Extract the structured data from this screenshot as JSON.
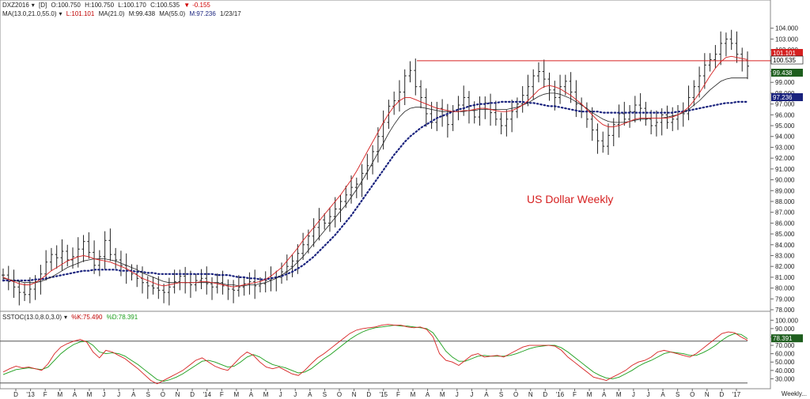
{
  "header": {
    "symbol": "DXZ2016",
    "dropdown_icon": "caret-down-icon",
    "period": "[D]",
    "open": "O:100.750",
    "high": "H:100.750",
    "low": "L:100.170",
    "close": "C:100.535",
    "change_icon": "triangle-down-icon",
    "change": "-0.155"
  },
  "ma_header": {
    "label": "MA(13.0,21.0,55.0)",
    "l": "L:101.101",
    "m1": "MA(21.0)",
    "m": "M:99.438",
    "m2": "MA(55.0)",
    "m3": "M:97.236",
    "date": "1/23/17"
  },
  "stoch_header": {
    "label": "SSTOC(13.0,8.0,3.0)",
    "k": "%K:75.490",
    "d": "%D:78.391"
  },
  "annotation": "US Dollar Weekly",
  "footer_label": "Weekly...",
  "colors": {
    "price_bar": "#222222",
    "ma13": "#d62020",
    "ma21": "#222222",
    "ma55": "#1a237e",
    "resistance": "#d62020",
    "k": "#d62020",
    "d": "#1a9e1a",
    "level": "#555555"
  },
  "chart_data": [
    {
      "type": "line",
      "title": "",
      "annotation": "US Dollar Weekly",
      "ylim": [
        78,
        105
      ],
      "y_ticks": [
        "78.000",
        "79.000",
        "80.000",
        "81.000",
        "82.000",
        "83.000",
        "84.000",
        "85.000",
        "86.000",
        "87.000",
        "88.000",
        "89.000",
        "90.000",
        "91.000",
        "92.000",
        "93.000",
        "94.000",
        "95.000",
        "96.000",
        "97.000",
        "98.000",
        "99.000",
        "100.000",
        "101.000",
        "102.000",
        "103.000",
        "104.000"
      ],
      "x_ticks": [
        "D",
        "'13",
        "F",
        "M",
        "A",
        "M",
        "J",
        "J",
        "A",
        "S",
        "O",
        "N",
        "D",
        "'14",
        "F",
        "M",
        "A",
        "M",
        "J",
        "J",
        "A",
        "S",
        "O",
        "N",
        "D",
        "'15",
        "F",
        "M",
        "A",
        "M",
        "J",
        "J",
        "A",
        "S",
        "O",
        "N",
        "D",
        "'16",
        "F",
        "M",
        "A",
        "M",
        "J",
        "J",
        "A",
        "S",
        "O",
        "N",
        "D",
        "'17"
      ],
      "last_value_labels": [
        {
          "series": "MA(13.0)",
          "value": "101.101"
        },
        {
          "series": "Close",
          "value": "100.535"
        },
        {
          "series": "MA(21.0)",
          "value": "99.438"
        },
        {
          "series": "MA(55.0)",
          "value": "97.236"
        }
      ],
      "resistance_level": 101.0,
      "weekly_close_series": [
        81.2,
        80.6,
        80.1,
        79.6,
        79.4,
        79.9,
        80.6,
        81.3,
        82.4,
        83.1,
        82.8,
        83.4,
        82.6,
        82.9,
        83.6,
        84.3,
        83.3,
        82.1,
        82.9,
        84.4,
        83.1,
        82.6,
        82.1,
        81.6,
        81.3,
        80.9,
        80.5,
        80.2,
        80.0,
        79.8,
        79.6,
        80.1,
        80.6,
        81.1,
        80.5,
        80.3,
        80.7,
        80.9,
        80.4,
        80.1,
        80.5,
        80.2,
        79.9,
        79.8,
        80.1,
        80.4,
        80.6,
        80.2,
        80.4,
        80.7,
        80.9,
        81.0,
        81.5,
        82.0,
        82.5,
        83.2,
        84.0,
        84.8,
        85.6,
        86.3,
        86.0,
        86.6,
        87.3,
        88.0,
        88.6,
        89.3,
        89.6,
        90.6,
        91.3,
        92.6,
        94.0,
        95.3,
        96.8,
        97.3,
        98.1,
        99.6,
        100.1,
        98.6,
        97.6,
        96.1,
        95.3,
        96.6,
        95.9,
        95.1,
        96.3,
        96.9,
        97.6,
        96.4,
        95.8,
        96.6,
        97.1,
        96.2,
        95.6,
        95.0,
        95.6,
        96.3,
        97.0,
        97.8,
        98.6,
        99.6,
        100.0,
        99.3,
        98.3,
        97.6,
        98.6,
        99.1,
        98.1,
        97.0,
        96.3,
        95.6,
        94.6,
        93.6,
        93.1,
        94.1,
        95.1,
        96.1,
        95.6,
        96.3,
        96.9,
        96.6,
        95.6,
        95.0,
        95.3,
        96.0,
        95.3,
        95.6,
        96.3,
        96.1,
        97.6,
        98.6,
        99.6,
        100.6,
        101.1,
        101.6,
        102.6,
        103.0,
        102.6,
        101.6,
        101.0,
        100.5
      ],
      "ma13_series": [
        81.0,
        80.8,
        80.6,
        80.4,
        80.3,
        80.3,
        80.5,
        80.8,
        81.2,
        81.6,
        81.9,
        82.2,
        82.5,
        82.7,
        82.9,
        83.0,
        82.9,
        82.7,
        82.6,
        82.5,
        82.4,
        82.2,
        82.0,
        81.8,
        81.5,
        81.2,
        80.9,
        80.7,
        80.5,
        80.3,
        80.2,
        80.3,
        80.4,
        80.5,
        80.5,
        80.5,
        80.5,
        80.6,
        80.6,
        80.5,
        80.4,
        80.3,
        80.2,
        80.1,
        80.2,
        80.3,
        80.4,
        80.5,
        80.6,
        80.8,
        81.1,
        81.5,
        81.9,
        82.5,
        83.1,
        83.7,
        84.4,
        85.0,
        85.6,
        86.2,
        86.8,
        87.4,
        88.0,
        88.6,
        89.3,
        90.0,
        90.8,
        91.7,
        92.6,
        93.5,
        94.4,
        95.3,
        96.1,
        96.8,
        97.3,
        97.6,
        97.6,
        97.4,
        97.2,
        97.0,
        96.8,
        96.6,
        96.5,
        96.4,
        96.3,
        96.3,
        96.4,
        96.4,
        96.5,
        96.6,
        96.6,
        96.5,
        96.4,
        96.3,
        96.3,
        96.4,
        96.6,
        96.9,
        97.3,
        97.8,
        98.3,
        98.6,
        98.7,
        98.6,
        98.4,
        98.1,
        97.8,
        97.4,
        97.0,
        96.5,
        96.0,
        95.5,
        95.1,
        94.9,
        94.9,
        95.0,
        95.2,
        95.4,
        95.6,
        95.7,
        95.7,
        95.7,
        95.7,
        95.7,
        95.7,
        95.8,
        96.0,
        96.3,
        96.7,
        97.3,
        98.0,
        98.8,
        99.6,
        100.3,
        100.9,
        101.3,
        101.4,
        101.3,
        101.2,
        101.1
      ],
      "ma21_series": [
        80.9,
        80.8,
        80.7,
        80.6,
        80.5,
        80.5,
        80.5,
        80.6,
        80.8,
        81.0,
        81.3,
        81.6,
        81.9,
        82.1,
        82.3,
        82.5,
        82.6,
        82.7,
        82.7,
        82.7,
        82.6,
        82.5,
        82.3,
        82.1,
        81.9,
        81.7,
        81.4,
        81.2,
        81.0,
        80.8,
        80.6,
        80.5,
        80.5,
        80.5,
        80.5,
        80.5,
        80.5,
        80.5,
        80.5,
        80.5,
        80.5,
        80.4,
        80.3,
        80.3,
        80.2,
        80.2,
        80.3,
        80.3,
        80.4,
        80.5,
        80.7,
        80.9,
        81.2,
        81.5,
        81.9,
        82.4,
        82.9,
        83.5,
        84.1,
        84.7,
        85.3,
        85.9,
        86.5,
        87.1,
        87.7,
        88.4,
        89.1,
        89.9,
        90.7,
        91.6,
        92.5,
        93.4,
        94.3,
        95.1,
        95.8,
        96.3,
        96.6,
        96.7,
        96.7,
        96.6,
        96.5,
        96.4,
        96.3,
        96.3,
        96.3,
        96.3,
        96.3,
        96.4,
        96.4,
        96.5,
        96.5,
        96.5,
        96.5,
        96.5,
        96.5,
        96.6,
        96.7,
        96.9,
        97.1,
        97.4,
        97.7,
        97.9,
        98.0,
        98.0,
        97.9,
        97.7,
        97.5,
        97.2,
        96.9,
        96.6,
        96.2,
        95.9,
        95.6,
        95.4,
        95.3,
        95.3,
        95.3,
        95.4,
        95.5,
        95.6,
        95.6,
        95.7,
        95.7,
        95.7,
        95.8,
        95.9,
        96.0,
        96.2,
        96.5,
        96.9,
        97.3,
        97.8,
        98.3,
        98.7,
        99.1,
        99.3,
        99.4,
        99.4,
        99.4,
        99.4
      ],
      "ma55_series": [
        80.7,
        80.7,
        80.7,
        80.7,
        80.7,
        80.7,
        80.8,
        80.8,
        80.9,
        81.0,
        81.1,
        81.2,
        81.3,
        81.4,
        81.5,
        81.6,
        81.6,
        81.7,
        81.7,
        81.7,
        81.7,
        81.7,
        81.6,
        81.6,
        81.6,
        81.5,
        81.5,
        81.4,
        81.4,
        81.3,
        81.3,
        81.3,
        81.3,
        81.3,
        81.3,
        81.3,
        81.3,
        81.3,
        81.3,
        81.3,
        81.2,
        81.2,
        81.2,
        81.1,
        81.0,
        81.0,
        80.9,
        80.9,
        80.8,
        80.8,
        80.9,
        81.0,
        81.1,
        81.3,
        81.5,
        81.8,
        82.1,
        82.5,
        82.9,
        83.4,
        83.9,
        84.4,
        84.9,
        85.5,
        86.1,
        86.7,
        87.4,
        88.1,
        88.8,
        89.5,
        90.2,
        90.9,
        91.6,
        92.3,
        92.9,
        93.5,
        94.0,
        94.4,
        94.8,
        95.1,
        95.4,
        95.7,
        95.9,
        96.1,
        96.3,
        96.5,
        96.6,
        96.8,
        96.9,
        97.0,
        97.0,
        97.1,
        97.1,
        97.2,
        97.2,
        97.2,
        97.2,
        97.2,
        97.1,
        97.1,
        97.0,
        96.9,
        96.8,
        96.8,
        96.7,
        96.6,
        96.5,
        96.4,
        96.3,
        96.3,
        96.3,
        96.3,
        96.2,
        96.2,
        96.2,
        96.2,
        96.2,
        96.2,
        96.2,
        96.2,
        96.2,
        96.2,
        96.2,
        96.2,
        96.2,
        96.2,
        96.3,
        96.3,
        96.4,
        96.5,
        96.6,
        96.7,
        96.8,
        96.9,
        97.0,
        97.1,
        97.1,
        97.2,
        97.2,
        97.2
      ]
    },
    {
      "type": "line",
      "title": "SSTOC(13.0,8.0,3.0)",
      "ylim": [
        20,
        105
      ],
      "y_ticks": [
        "30.000",
        "40.000",
        "50.000",
        "60.000",
        "70.000",
        "80.000",
        "90.000",
        "100.000"
      ],
      "last_value_labels": [
        {
          "series": "%D",
          "value": "78.391"
        }
      ],
      "levels": [
        75,
        25
      ],
      "k_series": [
        38,
        42,
        45,
        43,
        44,
        42,
        40,
        48,
        60,
        68,
        72,
        75,
        77,
        74,
        62,
        55,
        64,
        62,
        58,
        54,
        48,
        42,
        35,
        28,
        24,
        28,
        32,
        36,
        40,
        46,
        52,
        55,
        50,
        45,
        42,
        40,
        48,
        56,
        62,
        58,
        50,
        44,
        42,
        44,
        40,
        36,
        34,
        40,
        48,
        55,
        60,
        66,
        72,
        78,
        84,
        88,
        90,
        91,
        92,
        94,
        95,
        94,
        94,
        92,
        91,
        92,
        89,
        80,
        60,
        52,
        50,
        46,
        52,
        58,
        60,
        56,
        57,
        58,
        56,
        60,
        64,
        68,
        70,
        70,
        70,
        70,
        69,
        64,
        56,
        50,
        44,
        38,
        32,
        30,
        28,
        32,
        36,
        40,
        46,
        50,
        52,
        56,
        62,
        64,
        62,
        60,
        58,
        56,
        60,
        66,
        72,
        78,
        84,
        86,
        85,
        80,
        76
      ],
      "d_series": [
        35,
        38,
        41,
        42,
        43,
        42,
        41,
        44,
        52,
        60,
        66,
        71,
        74,
        75,
        70,
        62,
        60,
        61,
        60,
        57,
        52,
        47,
        41,
        35,
        29,
        27,
        29,
        32,
        36,
        41,
        46,
        51,
        52,
        50,
        47,
        44,
        45,
        50,
        56,
        59,
        56,
        51,
        47,
        45,
        43,
        40,
        37,
        38,
        42,
        48,
        54,
        59,
        65,
        71,
        77,
        82,
        86,
        89,
        91,
        92,
        93,
        94,
        93,
        93,
        92,
        91,
        90,
        85,
        74,
        63,
        56,
        51,
        51,
        54,
        57,
        58,
        57,
        57,
        57,
        58,
        60,
        63,
        66,
        68,
        69,
        70,
        70,
        67,
        62,
        56,
        50,
        44,
        38,
        34,
        31,
        30,
        32,
        36,
        40,
        45,
        49,
        52,
        56,
        60,
        62,
        61,
        60,
        58,
        58,
        61,
        65,
        70,
        76,
        81,
        84,
        83,
        78
      ]
    }
  ]
}
